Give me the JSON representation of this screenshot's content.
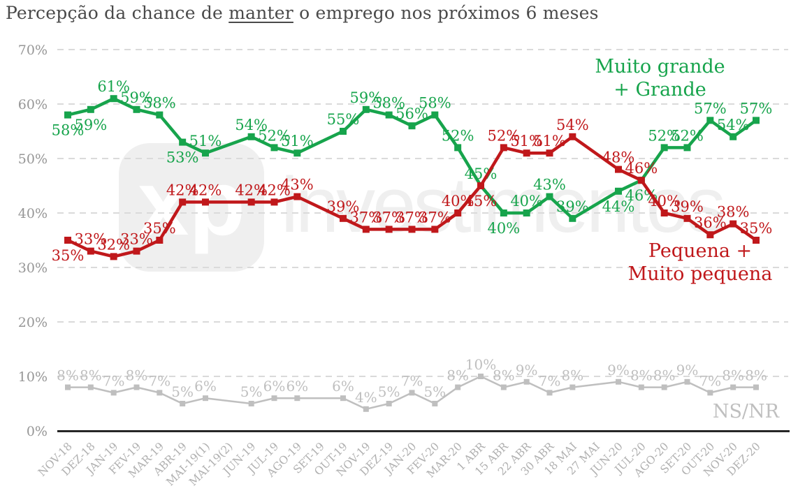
{
  "title": {
    "prefix": "Percepção da chance de ",
    "underlined": "manter",
    "suffix": " o emprego nos próximos 6 meses"
  },
  "legend": {
    "green_line1": "Muito grande",
    "green_line2": "+ Grande",
    "red_line1": "Pequena +",
    "red_line2": "Muito pequena",
    "gray": "NS/NR"
  },
  "watermark": {
    "logo_text": "xp",
    "text": "investimentos"
  },
  "chart_data": {
    "type": "line",
    "title": "Percepção da chance de manter o emprego nos próximos 6 meses",
    "xlabel": "",
    "ylabel": "",
    "ylim": [
      0,
      70
    ],
    "yticks": [
      "0%",
      "10%",
      "20%",
      "30%",
      "40%",
      "50%",
      "60%",
      "70%"
    ],
    "grid": "horizontal-dashed",
    "x_label_rotation": 45,
    "legend_position": "inline-right",
    "categories": [
      "NOV-18",
      "DEZ-18",
      "JAN-19",
      "FEV-19",
      "MAR-19",
      "ABR-19",
      "MAI-19(1)",
      "MAI-19(2)",
      "JUN-19",
      "JUL-19",
      "AGO-19",
      "SET-19",
      "OUT-19",
      "NOV-19",
      "DEZ-19",
      "JAN-20",
      "FEV-20",
      "MAR-20",
      "1 ABR",
      "15 ABR",
      "22 ABR",
      "30 ABR",
      "18 MAI",
      "27 MAI",
      "JUN-20",
      "JUL-20",
      "AGO-20",
      "SET-20",
      "OUT-20",
      "NOV-20",
      "DEZ-20"
    ],
    "series": [
      {
        "name": "Muito grande + Grande",
        "color": "#17A44C",
        "values": [
          58,
          59,
          61,
          59,
          58,
          53,
          51,
          null,
          54,
          52,
          51,
          null,
          55,
          59,
          58,
          56,
          58,
          52,
          45,
          40,
          40,
          43,
          39,
          null,
          44,
          46,
          52,
          52,
          57,
          54,
          57
        ]
      },
      {
        "name": "Pequena + Muito pequena",
        "color": "#C0181B",
        "values": [
          35,
          33,
          32,
          33,
          35,
          42,
          42,
          null,
          42,
          42,
          43,
          null,
          39,
          37,
          37,
          37,
          37,
          40,
          45,
          52,
          51,
          51,
          54,
          null,
          48,
          46,
          40,
          39,
          36,
          38,
          35
        ]
      },
      {
        "name": "NS/NR",
        "color": "#BFBFBF",
        "values": [
          8,
          8,
          7,
          8,
          7,
          5,
          6,
          null,
          5,
          6,
          6,
          null,
          6,
          4,
          5,
          7,
          5,
          8,
          10,
          8,
          9,
          7,
          8,
          null,
          9,
          8,
          8,
          9,
          7,
          8,
          8
        ]
      }
    ]
  }
}
